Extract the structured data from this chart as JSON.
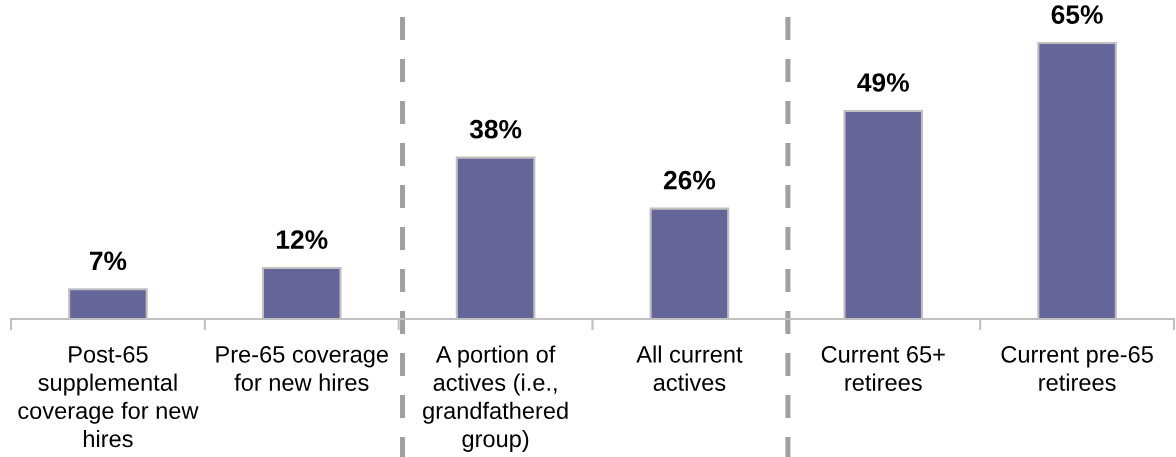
{
  "chart_data": {
    "type": "bar",
    "categories": [
      "Post-65\nsupplemental\ncoverage for new\nhires",
      "Pre-65 coverage\nfor new hires",
      "A portion of\nactives (i.e.,\ngrandfathered\ngroup)",
      "All current\nactives",
      "Current 65+\nretirees",
      "Current pre-65\nretirees"
    ],
    "values": [
      7,
      12,
      38,
      26,
      49,
      65
    ],
    "color": "#65659a",
    "value_labels": [
      "7%",
      "12%",
      "38%",
      "26%",
      "49%",
      "65%"
    ],
    "tick_labels": "x",
    "grid": false
  }
}
